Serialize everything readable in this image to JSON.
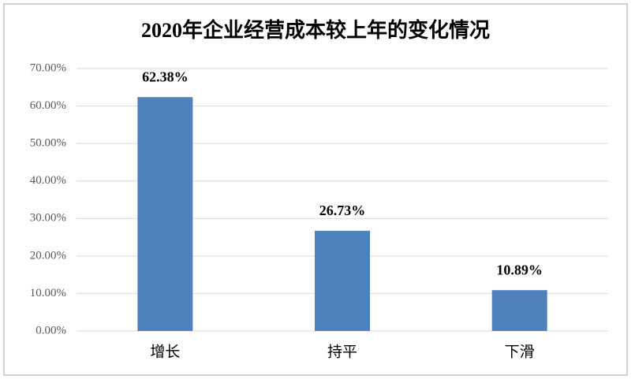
{
  "chart_data": {
    "type": "bar",
    "title": "2020年企业经营成本较上年的变化情况",
    "categories": [
      "增长",
      "持平",
      "下滑"
    ],
    "values": [
      62.38,
      26.73,
      10.89
    ],
    "value_labels": [
      "62.38%",
      "26.73%",
      "10.89%"
    ],
    "color": "#4f81bd",
    "ylim": [
      0,
      70
    ],
    "yticks": [
      {
        "value": 0,
        "label": "0.00%"
      },
      {
        "value": 10,
        "label": "10.00%"
      },
      {
        "value": 20,
        "label": "20.00%"
      },
      {
        "value": 30,
        "label": "30.00%"
      },
      {
        "value": 40,
        "label": "40.00%"
      },
      {
        "value": 50,
        "label": "50.00%"
      },
      {
        "value": 60,
        "label": "60.00%"
      },
      {
        "value": 70,
        "label": "70.00%"
      }
    ],
    "grid": true
  }
}
